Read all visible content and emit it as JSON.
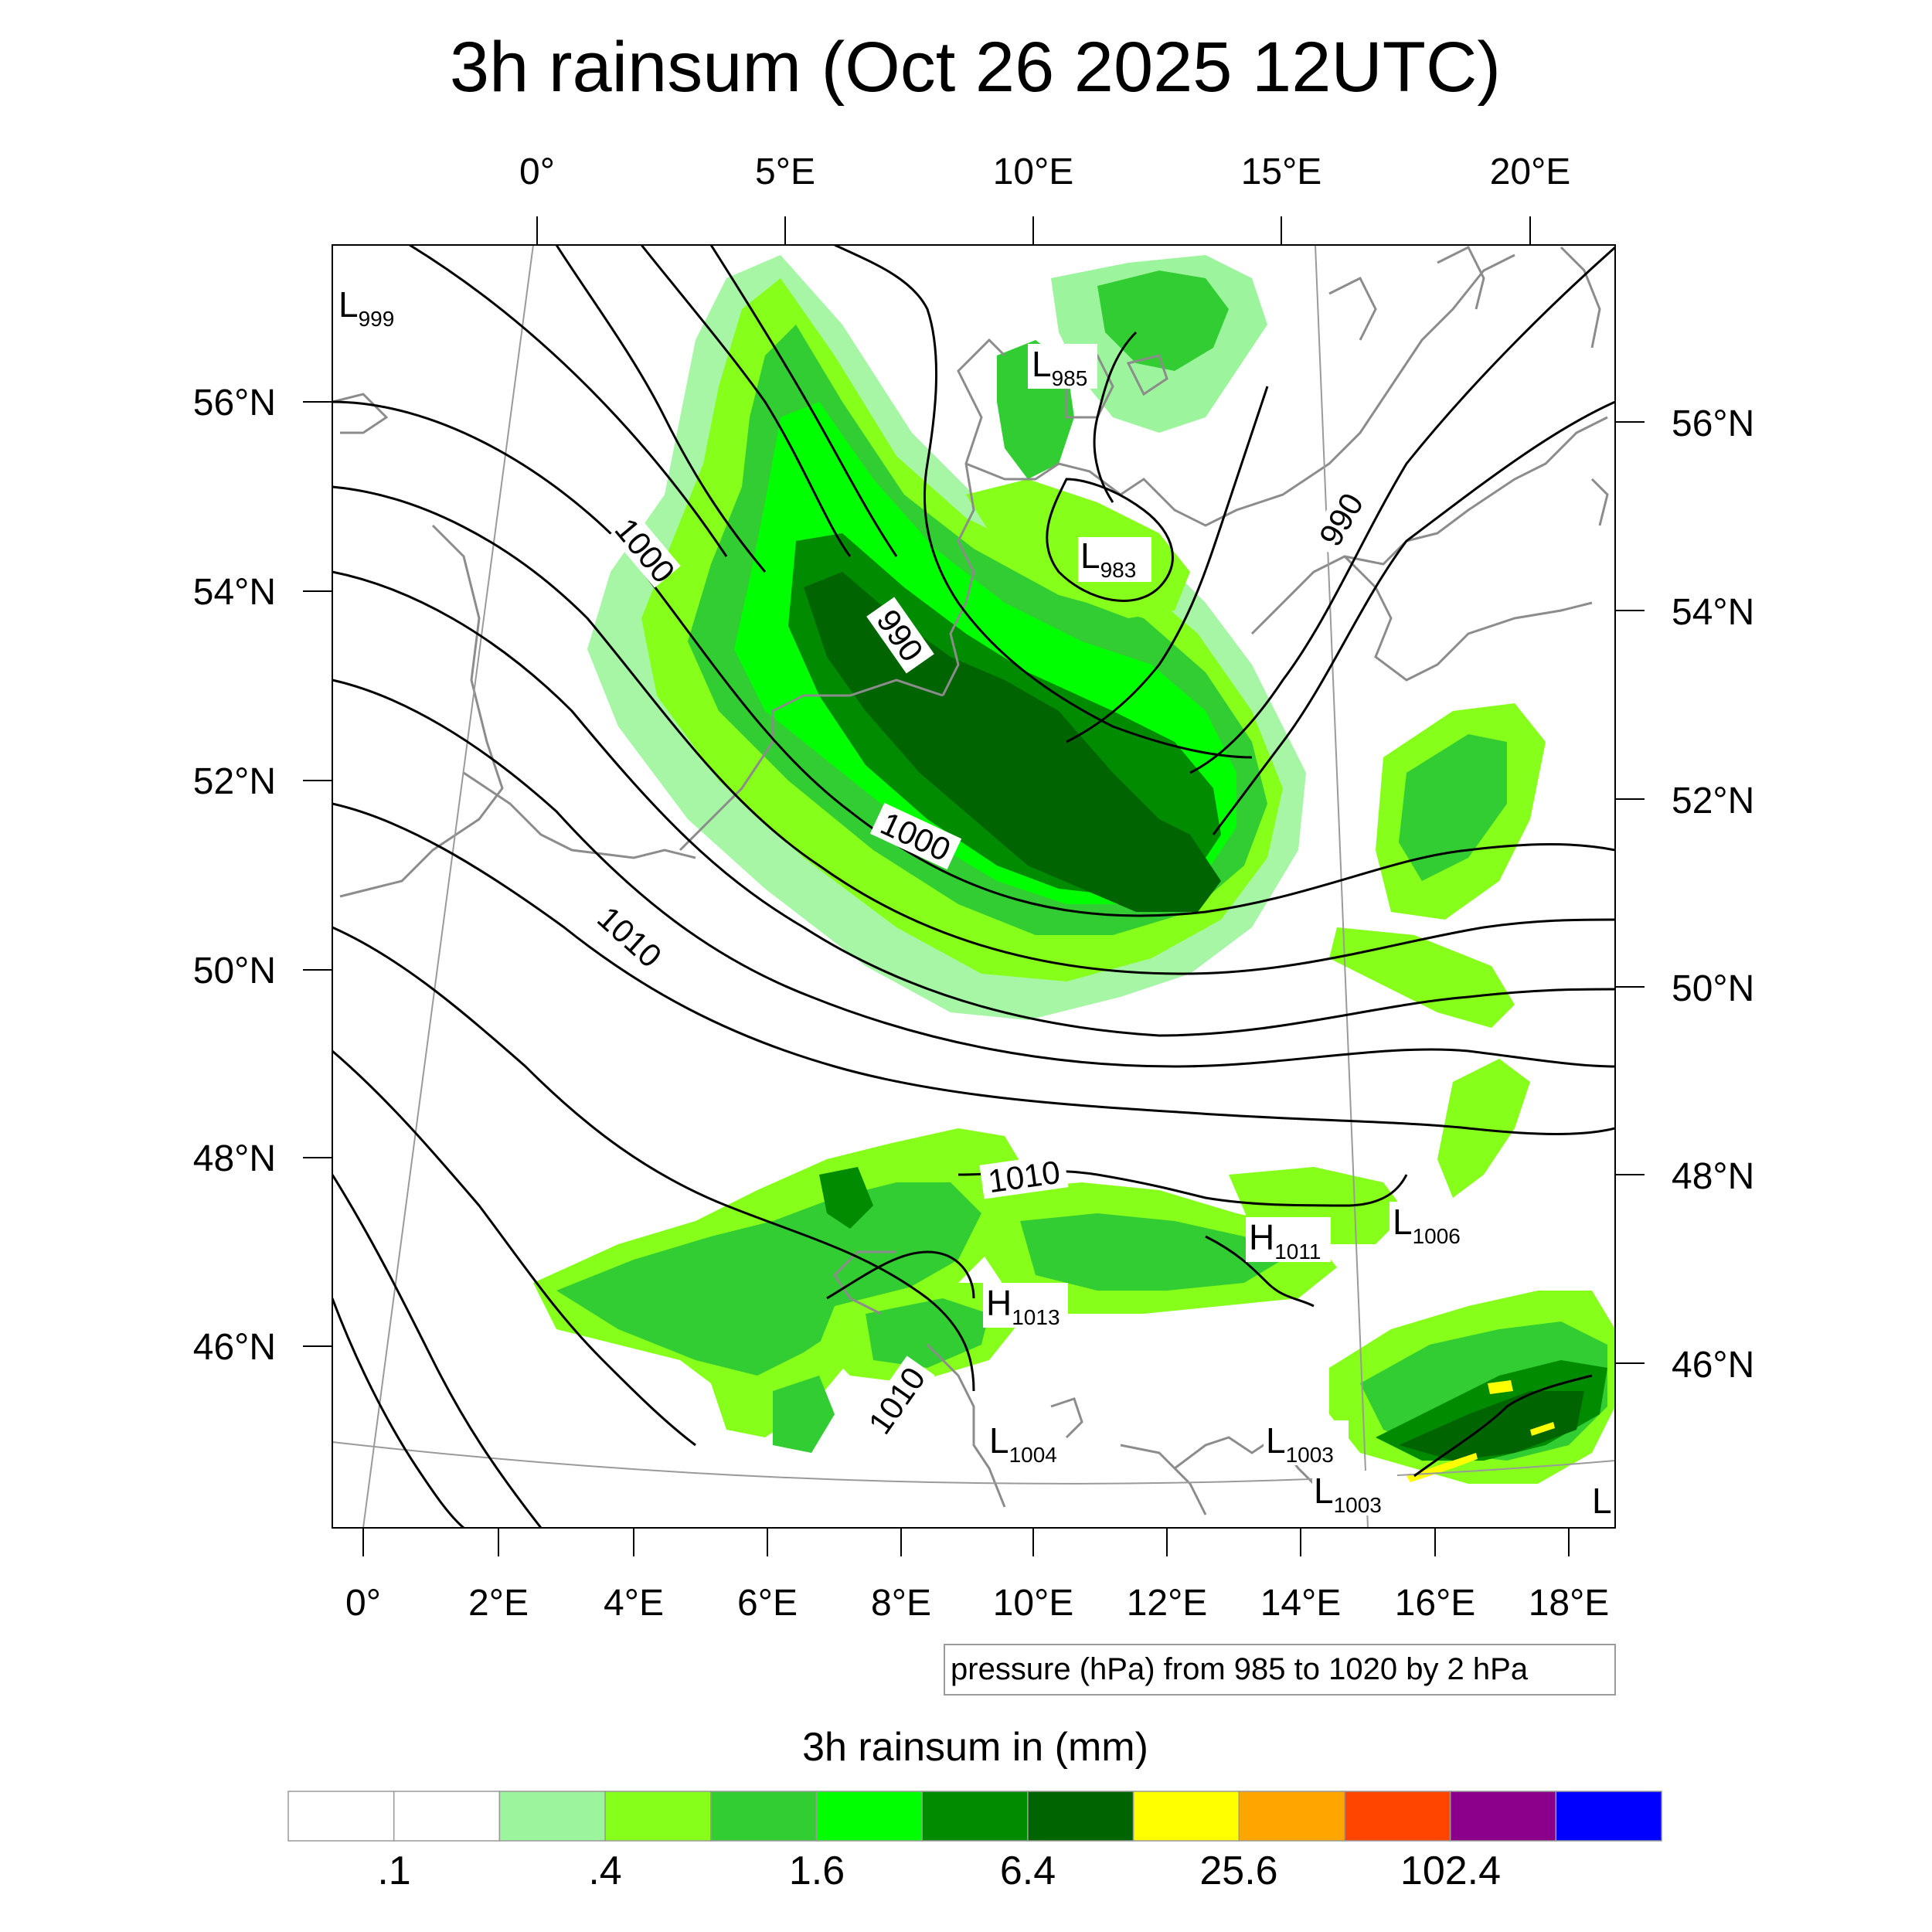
{
  "title": "3h rainsum (Oct 26 2025 12UTC)",
  "top_lon_ticks": [
    "0°",
    "5°E",
    "10°E",
    "15°E",
    "20°E"
  ],
  "bottom_lon_ticks": [
    "0°",
    "2°E",
    "4°E",
    "6°E",
    "8°E",
    "10°E",
    "12°E",
    "14°E",
    "16°E",
    "18°E"
  ],
  "left_lat_ticks": [
    "56°N",
    "54°N",
    "52°N",
    "50°N",
    "48°N",
    "46°N"
  ],
  "right_lat_ticks": [
    "56°N",
    "54°N",
    "52°N",
    "50°N",
    "48°N",
    "46°N"
  ],
  "contour_labels": [
    "1000",
    "990",
    "1000",
    "1010",
    "990",
    "1010",
    "1010"
  ],
  "pressure_centers": [
    {
      "letter": "L",
      "value": "999"
    },
    {
      "letter": "L",
      "value": "985"
    },
    {
      "letter": "L",
      "value": "983"
    },
    {
      "letter": "H",
      "value": "1011"
    },
    {
      "letter": "L",
      "value": "1006"
    },
    {
      "letter": "H",
      "value": "1013"
    },
    {
      "letter": "L",
      "value": "1004"
    },
    {
      "letter": "L",
      "value": "1003"
    },
    {
      "letter": "L",
      "value": "1003"
    },
    {
      "letter": "L",
      "value": ""
    }
  ],
  "contour_note": "pressure (hPa) from 985 to 1020 by 2 hPa",
  "colorbar": {
    "title": "3h rainsum in (mm)",
    "colors": [
      "#ffffff",
      "#ffffff",
      "#9cf59c",
      "#86ff1a",
      "#32cd32",
      "#00ff00",
      "#008b00",
      "#006400",
      "#ffff00",
      "#ffa500",
      "#ff4500",
      "#8b008b",
      "#0000ff"
    ],
    "labels": [
      ".1",
      ".4",
      "1.6",
      "6.4",
      "25.6",
      "102.4"
    ]
  }
}
